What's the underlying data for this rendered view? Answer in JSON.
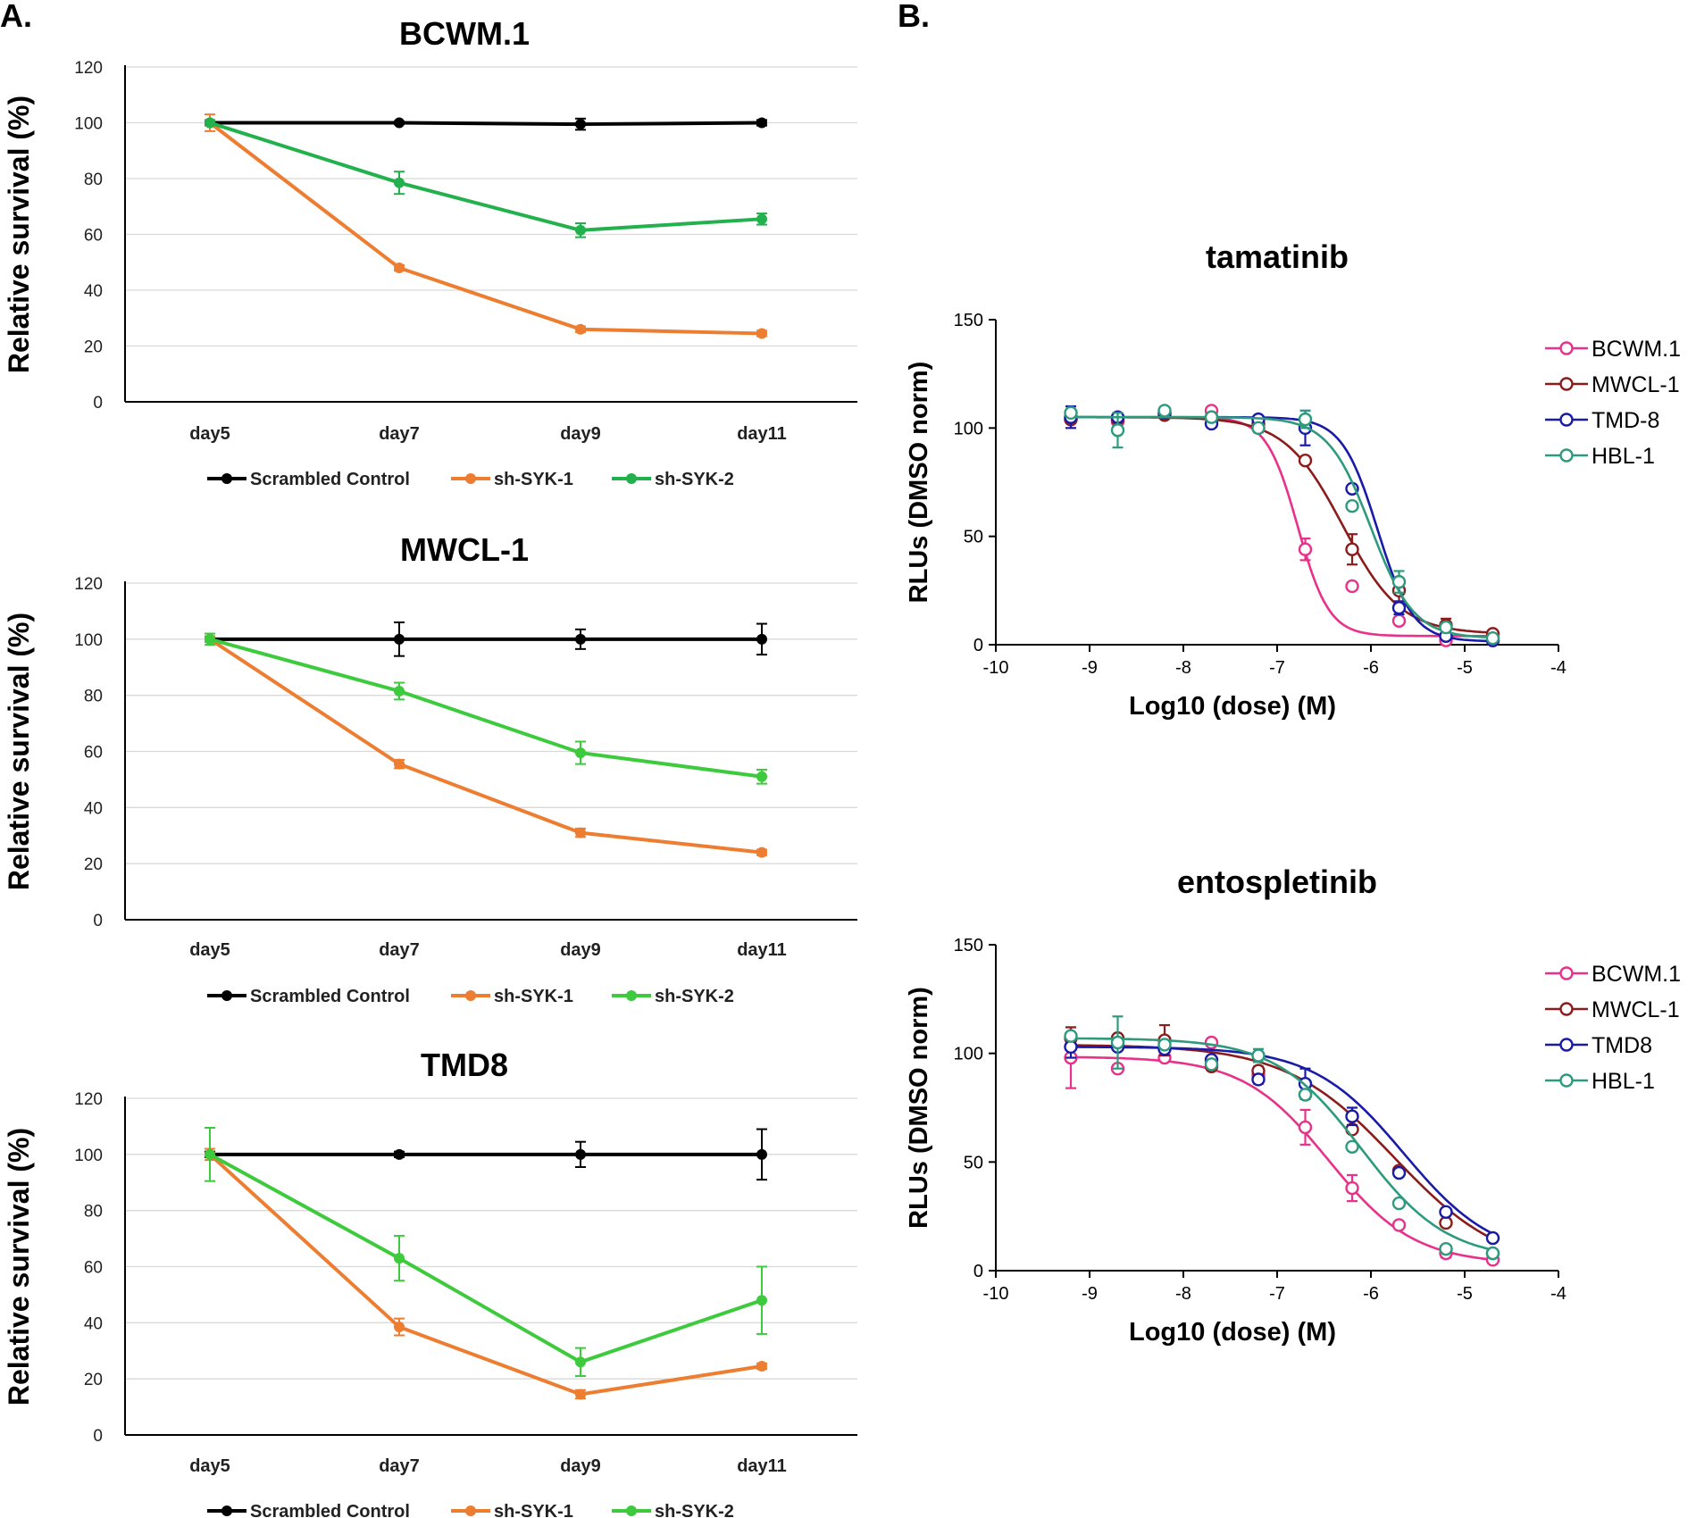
{
  "panel_labels": {
    "a": "A.",
    "b": "B."
  },
  "chart_data": [
    {
      "type": "line",
      "title": "BCWM.1",
      "xlabel": "",
      "ylabel": "Relative survival (%)",
      "categories": [
        "day5",
        "day7",
        "day9",
        "day11"
      ],
      "ylim": [
        0,
        120
      ],
      "yticks": [
        0,
        20,
        40,
        60,
        80,
        100,
        120
      ],
      "grid": true,
      "legend_position": "bottom",
      "series": [
        {
          "name": "Scrambled Control",
          "color": "#000000",
          "values": [
            100,
            100,
            99.5,
            100
          ],
          "errors": [
            0.5,
            0.5,
            2,
            1
          ]
        },
        {
          "name": "sh-SYK-1",
          "color": "#ed7d31",
          "values": [
            100,
            48,
            26,
            24.5
          ],
          "errors": [
            3,
            1,
            1,
            1
          ]
        },
        {
          "name": "sh-SYK-2",
          "color": "#22b14c",
          "values": [
            100,
            78.5,
            61.5,
            65.5
          ],
          "errors": [
            1,
            4,
            2.5,
            2
          ]
        }
      ]
    },
    {
      "type": "line",
      "title": "MWCL-1",
      "xlabel": "",
      "ylabel": "Relative survival (%)",
      "categories": [
        "day5",
        "day7",
        "day9",
        "day11"
      ],
      "ylim": [
        0,
        120
      ],
      "yticks": [
        0,
        20,
        40,
        60,
        80,
        100,
        120
      ],
      "grid": true,
      "legend_position": "bottom",
      "series": [
        {
          "name": "Scrambled Control",
          "color": "#000000",
          "values": [
            100,
            100,
            100,
            100
          ],
          "errors": [
            1,
            6,
            3.5,
            5.5
          ]
        },
        {
          "name": "sh-SYK-1",
          "color": "#ed7d31",
          "values": [
            100,
            55.5,
            31,
            24
          ],
          "errors": [
            1,
            1.5,
            1.5,
            1
          ]
        },
        {
          "name": "sh-SYK-2",
          "color": "#3dca3d",
          "values": [
            100,
            81.5,
            59.5,
            51
          ],
          "errors": [
            2,
            3,
            4,
            2.5
          ]
        }
      ]
    },
    {
      "type": "line",
      "title": "TMD8",
      "xlabel": "",
      "ylabel": "Relative survival (%)",
      "categories": [
        "day5",
        "day7",
        "day9",
        "day11"
      ],
      "ylim": [
        0,
        120
      ],
      "yticks": [
        0,
        20,
        40,
        60,
        80,
        100,
        120
      ],
      "grid": true,
      "legend_position": "bottom",
      "series": [
        {
          "name": "Scrambled Control",
          "color": "#000000",
          "values": [
            100,
            100,
            100,
            100
          ],
          "errors": [
            1,
            1,
            4.5,
            9
          ]
        },
        {
          "name": "sh-SYK-1",
          "color": "#ed7d31",
          "values": [
            100,
            38.5,
            14.5,
            24.5
          ],
          "errors": [
            2,
            3,
            1.5,
            1
          ]
        },
        {
          "name": "sh-SYK-2",
          "color": "#3dca3d",
          "values": [
            100,
            63,
            26,
            48
          ],
          "errors": [
            9.5,
            8,
            5,
            12
          ]
        }
      ]
    },
    {
      "type": "scatter",
      "title": "tamatinib",
      "xlabel": "Log10 (dose) (M)",
      "ylabel": "RLUs (DMSO norm)",
      "xlim": [
        -10,
        -4
      ],
      "ylim": [
        0,
        150
      ],
      "xticks": [
        -10,
        -9,
        -8,
        -7,
        -6,
        -5,
        -4
      ],
      "yticks": [
        0,
        50,
        100,
        150
      ],
      "grid": false,
      "legend_position": "right",
      "x": [
        -9.2,
        -8.7,
        -8.2,
        -7.7,
        -7.2,
        -6.7,
        -6.2,
        -5.7,
        -5.2,
        -4.7
      ],
      "series": [
        {
          "name": "BCWM.1",
          "color": "#e8318a",
          "values": [
            104,
            103,
            107,
            108,
            100,
            44,
            27,
            11,
            2,
            2
          ],
          "errors": [
            0,
            0,
            0,
            0,
            2,
            5,
            0,
            0,
            0,
            0
          ],
          "fit": {
            "top": 105,
            "bottom": 4,
            "logIC50": -6.78,
            "hill": 2.6
          }
        },
        {
          "name": "MWCL-1",
          "color": "#8b1c1c",
          "values": [
            104,
            104,
            106,
            105,
            102,
            85,
            44,
            25,
            9,
            5
          ],
          "errors": [
            0,
            0,
            0,
            0,
            0,
            0,
            7,
            5,
            3,
            0
          ],
          "fit": {
            "top": 105,
            "bottom": 5,
            "logIC50": -6.3,
            "hill": 1.4
          }
        },
        {
          "name": "TMD-8",
          "color": "#1a1aa8",
          "values": [
            105,
            105,
            107,
            102,
            104,
            100,
            72,
            17,
            4,
            2
          ],
          "errors": [
            5,
            0,
            2,
            0,
            0,
            8,
            0,
            3,
            0,
            0
          ],
          "fit": {
            "top": 105,
            "bottom": 1.5,
            "logIC50": -5.93,
            "hill": 2.3
          }
        },
        {
          "name": "HBL-1",
          "color": "#2e9a7d",
          "values": [
            107,
            99,
            108,
            105,
            100,
            104,
            64,
            29,
            8,
            3
          ],
          "errors": [
            0,
            8,
            0,
            0,
            0,
            4,
            0,
            5,
            2,
            0
          ],
          "fit": {
            "top": 105,
            "bottom": 3,
            "logIC50": -6.0,
            "hill": 1.9
          }
        }
      ]
    },
    {
      "type": "scatter",
      "title": "entospletinib",
      "xlabel": "Log10 (dose) (M)",
      "ylabel": "RLUs (DMSO norm)",
      "xlim": [
        -10,
        -4
      ],
      "ylim": [
        0,
        150
      ],
      "xticks": [
        -10,
        -9,
        -8,
        -7,
        -6,
        -5,
        -4
      ],
      "yticks": [
        0,
        50,
        100,
        150
      ],
      "grid": false,
      "legend_position": "right",
      "x": [
        -9.2,
        -8.7,
        -8.2,
        -7.7,
        -7.2,
        -6.7,
        -6.2,
        -5.7,
        -5.2,
        -4.7
      ],
      "series": [
        {
          "name": "BCWM.1",
          "color": "#e8318a",
          "values": [
            98,
            93,
            98,
            105,
            90,
            66,
            38,
            21,
            8,
            5
          ],
          "errors": [
            14,
            0,
            0,
            0,
            4,
            8,
            6,
            0,
            2,
            0
          ],
          "fit": {
            "top": 98.5,
            "bottom": 3,
            "logIC50": -6.45,
            "hill": 0.95
          }
        },
        {
          "name": "MWCL-1",
          "color": "#8b1c1c",
          "values": [
            107,
            107,
            106,
            94,
            92,
            81,
            65,
            46,
            22,
            8
          ],
          "errors": [
            5,
            0,
            7,
            0,
            0,
            0,
            0,
            0,
            0,
            0
          ],
          "fit": {
            "top": 104,
            "bottom": 0,
            "logIC50": -5.75,
            "hill": 0.75
          }
        },
        {
          "name": "TMD8",
          "color": "#1a1aa8",
          "values": [
            103,
            103,
            102,
            97,
            88,
            86,
            71,
            45,
            27,
            15
          ],
          "errors": [
            5,
            0,
            0,
            0,
            0,
            7,
            4,
            0,
            0,
            0
          ],
          "fit": {
            "top": 103,
            "bottom": 5,
            "logIC50": -5.65,
            "hill": 0.9
          }
        },
        {
          "name": "HBL-1",
          "color": "#2e9a7d",
          "values": [
            108,
            105,
            104,
            95,
            99,
            81,
            57,
            31,
            10,
            8
          ],
          "errors": [
            0,
            12,
            0,
            0,
            3,
            0,
            0,
            0,
            0,
            0
          ],
          "fit": {
            "top": 107,
            "bottom": 5,
            "logIC50": -6.1,
            "hill": 0.95
          }
        }
      ]
    }
  ]
}
